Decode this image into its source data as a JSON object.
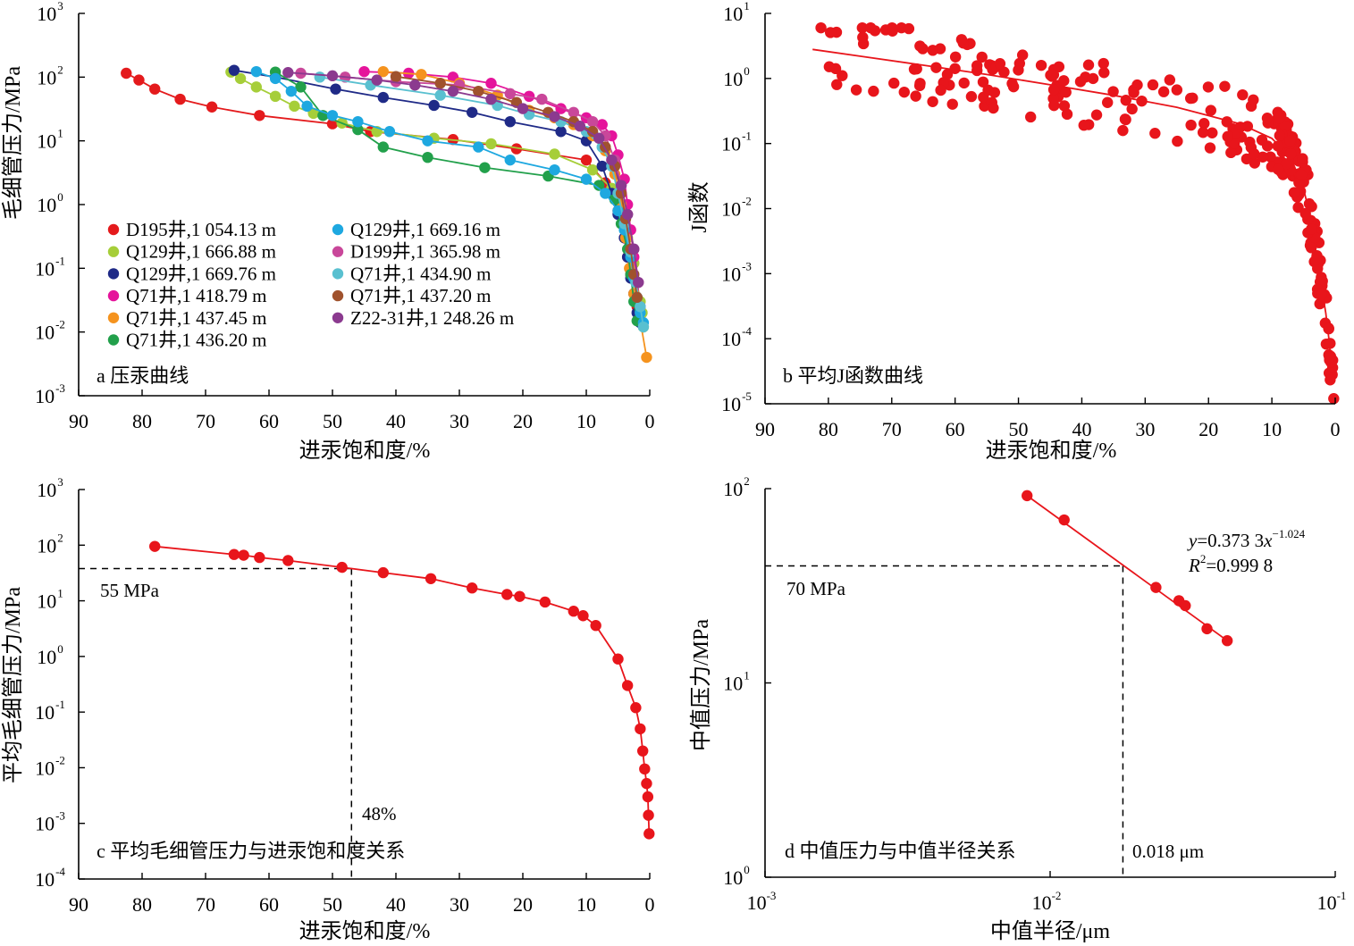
{
  "chart_data": [
    {
      "panel": "a",
      "type": "line",
      "panel_label": "a 压汞曲线",
      "xlabel": "进汞饱和度/%",
      "ylabel": "毛细管压力/MPa",
      "xlim": [
        90,
        0
      ],
      "ylim_exp": [
        -3,
        3
      ],
      "yscale": "log",
      "x_ticks": [
        "90",
        "80",
        "70",
        "60",
        "50",
        "40",
        "30",
        "20",
        "10",
        "0"
      ],
      "y_tick_exps": [
        "-3",
        "-2",
        "-1",
        "0",
        "1",
        "2",
        "3"
      ],
      "legend_position": "lower-left",
      "series": [
        {
          "name": "D195井,1 054.13 m",
          "color": "#e41a1c",
          "x": [
            82.5,
            80.5,
            78,
            74,
            69,
            61.5,
            50,
            44,
            31,
            21,
            10,
            7,
            5,
            4,
            3.5,
            3,
            2.5,
            2,
            1.5
          ],
          "y": [
            115,
            90,
            65,
            45,
            34,
            25,
            18.5,
            14,
            10.5,
            7.5,
            5,
            2.2,
            0.8,
            0.3,
            0.15,
            0.08,
            0.04,
            0.025,
            0.018
          ]
        },
        {
          "name": "Q129井,1 666.88 m",
          "color": "#a6ce39",
          "x": [
            66,
            64.5,
            62,
            59,
            56,
            53,
            48.5,
            43,
            34,
            25,
            15,
            9,
            6,
            4.5,
            3.5,
            2.5,
            2,
            1.5,
            1.2,
            1
          ],
          "y": [
            120,
            95,
            70,
            50,
            35,
            27,
            19,
            14,
            11,
            9,
            6.2,
            3.5,
            1.8,
            0.8,
            0.3,
            0.12,
            0.06,
            0.03,
            0.02,
            0.012
          ]
        },
        {
          "name": "Q129井,1 669.76 m",
          "color": "#1f2a87",
          "x": [
            65.5,
            59,
            49.5,
            42,
            34,
            28,
            22,
            14,
            10,
            7.5,
            6,
            5,
            4,
            3.5,
            3,
            2.5,
            2,
            1.5
          ],
          "y": [
            128,
            100,
            65,
            48,
            36,
            28,
            20,
            14,
            10,
            4,
            1.5,
            0.7,
            0.3,
            0.15,
            0.07,
            0.04,
            0.02,
            0.014
          ]
        },
        {
          "name": "Q71井,1 418.79 m",
          "color": "#e5149b",
          "x": [
            45,
            38,
            31,
            25,
            19,
            14,
            10,
            7.5,
            6,
            5,
            4,
            3.5,
            3,
            2.5,
            2,
            1.5
          ],
          "y": [
            122,
            115,
            100,
            80,
            50,
            32,
            23,
            18,
            12,
            6,
            2.5,
            1,
            0.4,
            0.15,
            0.06,
            0.025
          ]
        },
        {
          "name": "Q71井,1 437.45 m",
          "color": "#f5931e",
          "x": [
            42,
            36,
            30,
            24,
            19,
            15,
            12,
            9,
            7,
            5.5,
            4.5,
            3.8,
            3.2,
            2.5,
            1.5,
            0.5
          ],
          "y": [
            122,
            110,
            80,
            52,
            30,
            23,
            18,
            12,
            7,
            3,
            1,
            0.3,
            0.1,
            0.04,
            0.015,
            0.004
          ]
        },
        {
          "name": "Q71井,1 436.20 m",
          "color": "#22a04b",
          "x": [
            59,
            55,
            51.5,
            46,
            42,
            35,
            26,
            16,
            8,
            5.5,
            4.5,
            3.5,
            3,
            2.5,
            2
          ],
          "y": [
            120,
            70,
            25,
            15,
            8,
            5.5,
            3.8,
            2.8,
            2,
            1.2,
            0.5,
            0.2,
            0.08,
            0.03,
            0.015
          ]
        },
        {
          "name": "Q129井,1 669.16 m",
          "color": "#1ea8e0",
          "x": [
            62,
            59,
            56.5,
            54,
            50,
            46,
            41,
            35,
            27,
            22,
            15,
            10,
            7,
            5,
            4,
            3,
            2.5,
            2,
            1.5,
            1
          ],
          "y": [
            122,
            95,
            60,
            35,
            25,
            20,
            14,
            10,
            8,
            5,
            3.5,
            2.5,
            1.5,
            0.8,
            0.4,
            0.15,
            0.07,
            0.035,
            0.02,
            0.014
          ]
        },
        {
          "name": "D199井,1 365.98 m",
          "color": "#c9479a",
          "x": [
            55,
            48,
            40,
            30,
            22,
            17,
            12,
            9,
            7,
            5.5,
            4.5,
            3.5,
            2.5,
            1.8
          ],
          "y": [
            115,
            100,
            85,
            75,
            55,
            45,
            28,
            20,
            12,
            5,
            2,
            0.7,
            0.2,
            0.06
          ]
        },
        {
          "name": "Q71井,1 434.90 m",
          "color": "#59c0d0",
          "x": [
            52,
            44,
            33,
            24,
            19,
            14,
            10,
            7.5,
            6,
            5,
            4,
            3,
            2.2,
            1.5,
            1
          ],
          "y": [
            100,
            75,
            52,
            36,
            26,
            20,
            14,
            8,
            4,
            1.5,
            0.5,
            0.18,
            0.06,
            0.025,
            0.012
          ]
        },
        {
          "name": "Q71井,1 437.20 m",
          "color": "#a0522d",
          "x": [
            40,
            33,
            27,
            21,
            16,
            12,
            9,
            7,
            5.5,
            4.5,
            3.8,
            3,
            2.5,
            2
          ],
          "y": [
            102,
            80,
            60,
            40,
            28,
            20,
            14,
            8,
            4,
            1.5,
            0.6,
            0.2,
            0.08,
            0.035
          ]
        },
        {
          "name": "Z22-31井,1 248.26 m",
          "color": "#8b3a8f",
          "x": [
            57,
            50,
            43,
            37,
            31,
            25,
            20,
            15,
            11,
            8,
            6,
            4.5,
            3.5,
            2.5,
            1.8
          ],
          "y": [
            118,
            105,
            90,
            75,
            60,
            45,
            32,
            24,
            17,
            11,
            5,
            2,
            0.7,
            0.2,
            0.06
          ]
        }
      ]
    },
    {
      "panel": "b",
      "type": "scatter",
      "panel_label": "b 平均J函数曲线",
      "xlabel": "进汞饱和度/%",
      "ylabel": "J函数",
      "xlim": [
        90,
        0
      ],
      "ylim_exp": [
        -5,
        1
      ],
      "yscale": "log",
      "x_ticks": [
        "90",
        "80",
        "70",
        "60",
        "50",
        "40",
        "30",
        "20",
        "10",
        "0"
      ],
      "y_tick_exps": [
        "-5",
        "-4",
        "-3",
        "-2",
        "-1",
        "0",
        "1"
      ],
      "color": "#e8151b",
      "fit_x": [
        82.5,
        75,
        65,
        55,
        45,
        35,
        25,
        15,
        10,
        7,
        5,
        4,
        3,
        2,
        1.5,
        1,
        0.5
      ],
      "fit_y": [
        2.8,
        2.2,
        1.6,
        1.15,
        0.8,
        0.55,
        0.36,
        0.2,
        0.12,
        0.06,
        0.02,
        0.008,
        0.002,
        0.0005,
        0.00025,
        0.0001,
        3e-05
      ]
    },
    {
      "panel": "c",
      "type": "line",
      "panel_label": "c 平均毛细管压力与进汞饱和度关系",
      "xlabel": "进汞饱和度/%",
      "ylabel": "平均毛细管压力/MPa",
      "xlim": [
        90,
        0
      ],
      "ylim_exp": [
        -4,
        3
      ],
      "yscale": "log",
      "x_ticks": [
        "90",
        "80",
        "70",
        "60",
        "50",
        "40",
        "30",
        "20",
        "10",
        "0"
      ],
      "y_tick_exps": [
        "-4",
        "-3",
        "-2",
        "-1",
        "0",
        "1",
        "2",
        "3"
      ],
      "color": "#e8151b",
      "x": [
        78,
        65.5,
        64,
        61.5,
        57,
        48.5,
        42,
        34.5,
        28,
        22.5,
        20.5,
        16.5,
        12,
        10.5,
        8.5,
        5,
        3.5,
        2.2,
        1.5,
        1.1,
        0.8,
        0.5,
        0.3,
        0.2,
        0.1
      ],
      "y": [
        95,
        68,
        66,
        60,
        53,
        40,
        32,
        25,
        17,
        13,
        12,
        9.5,
        6.5,
        5.4,
        3.6,
        0.9,
        0.3,
        0.12,
        0.05,
        0.02,
        0.0095,
        0.0052,
        0.003,
        0.0014,
        0.00065
      ],
      "annotations": {
        "pressure_label": "55 MPa",
        "saturation_label": "48%",
        "line_y": 38,
        "line_x": 47
      }
    },
    {
      "panel": "d",
      "type": "line",
      "panel_label": "d 中值压力与中值半径关系",
      "xlabel": "中值半径/μm",
      "ylabel": "中值压力/MPa",
      "xscale": "log",
      "yscale": "log",
      "xlim_exp": [
        -3,
        -1
      ],
      "ylim_exp": [
        0,
        2
      ],
      "x_tick_exps": [
        "-3",
        "-2",
        "-1"
      ],
      "y_tick_exps": [
        "0",
        "1",
        "2"
      ],
      "color": "#e8151b",
      "x": [
        0.0083,
        0.0112,
        0.0235,
        0.0283,
        0.0298,
        0.0355,
        0.0418
      ],
      "y": [
        92,
        69,
        31,
        26.5,
        25,
        19,
        16.5
      ],
      "fit_x": [
        0.0083,
        0.0418
      ],
      "fit_y": [
        92,
        16.5
      ],
      "equation_prefix": "y",
      "equation_mid": "=0.373 3",
      "equation_var": "x",
      "equation_exp": "−1.024",
      "r2_prefix": "R",
      "r2_sup": "2",
      "r2_value": "=0.999 8",
      "annotations": {
        "pressure_label": "70 MPa",
        "radius_label": "0.018 μm",
        "line_y": 40,
        "line_x": 0.018
      }
    }
  ]
}
